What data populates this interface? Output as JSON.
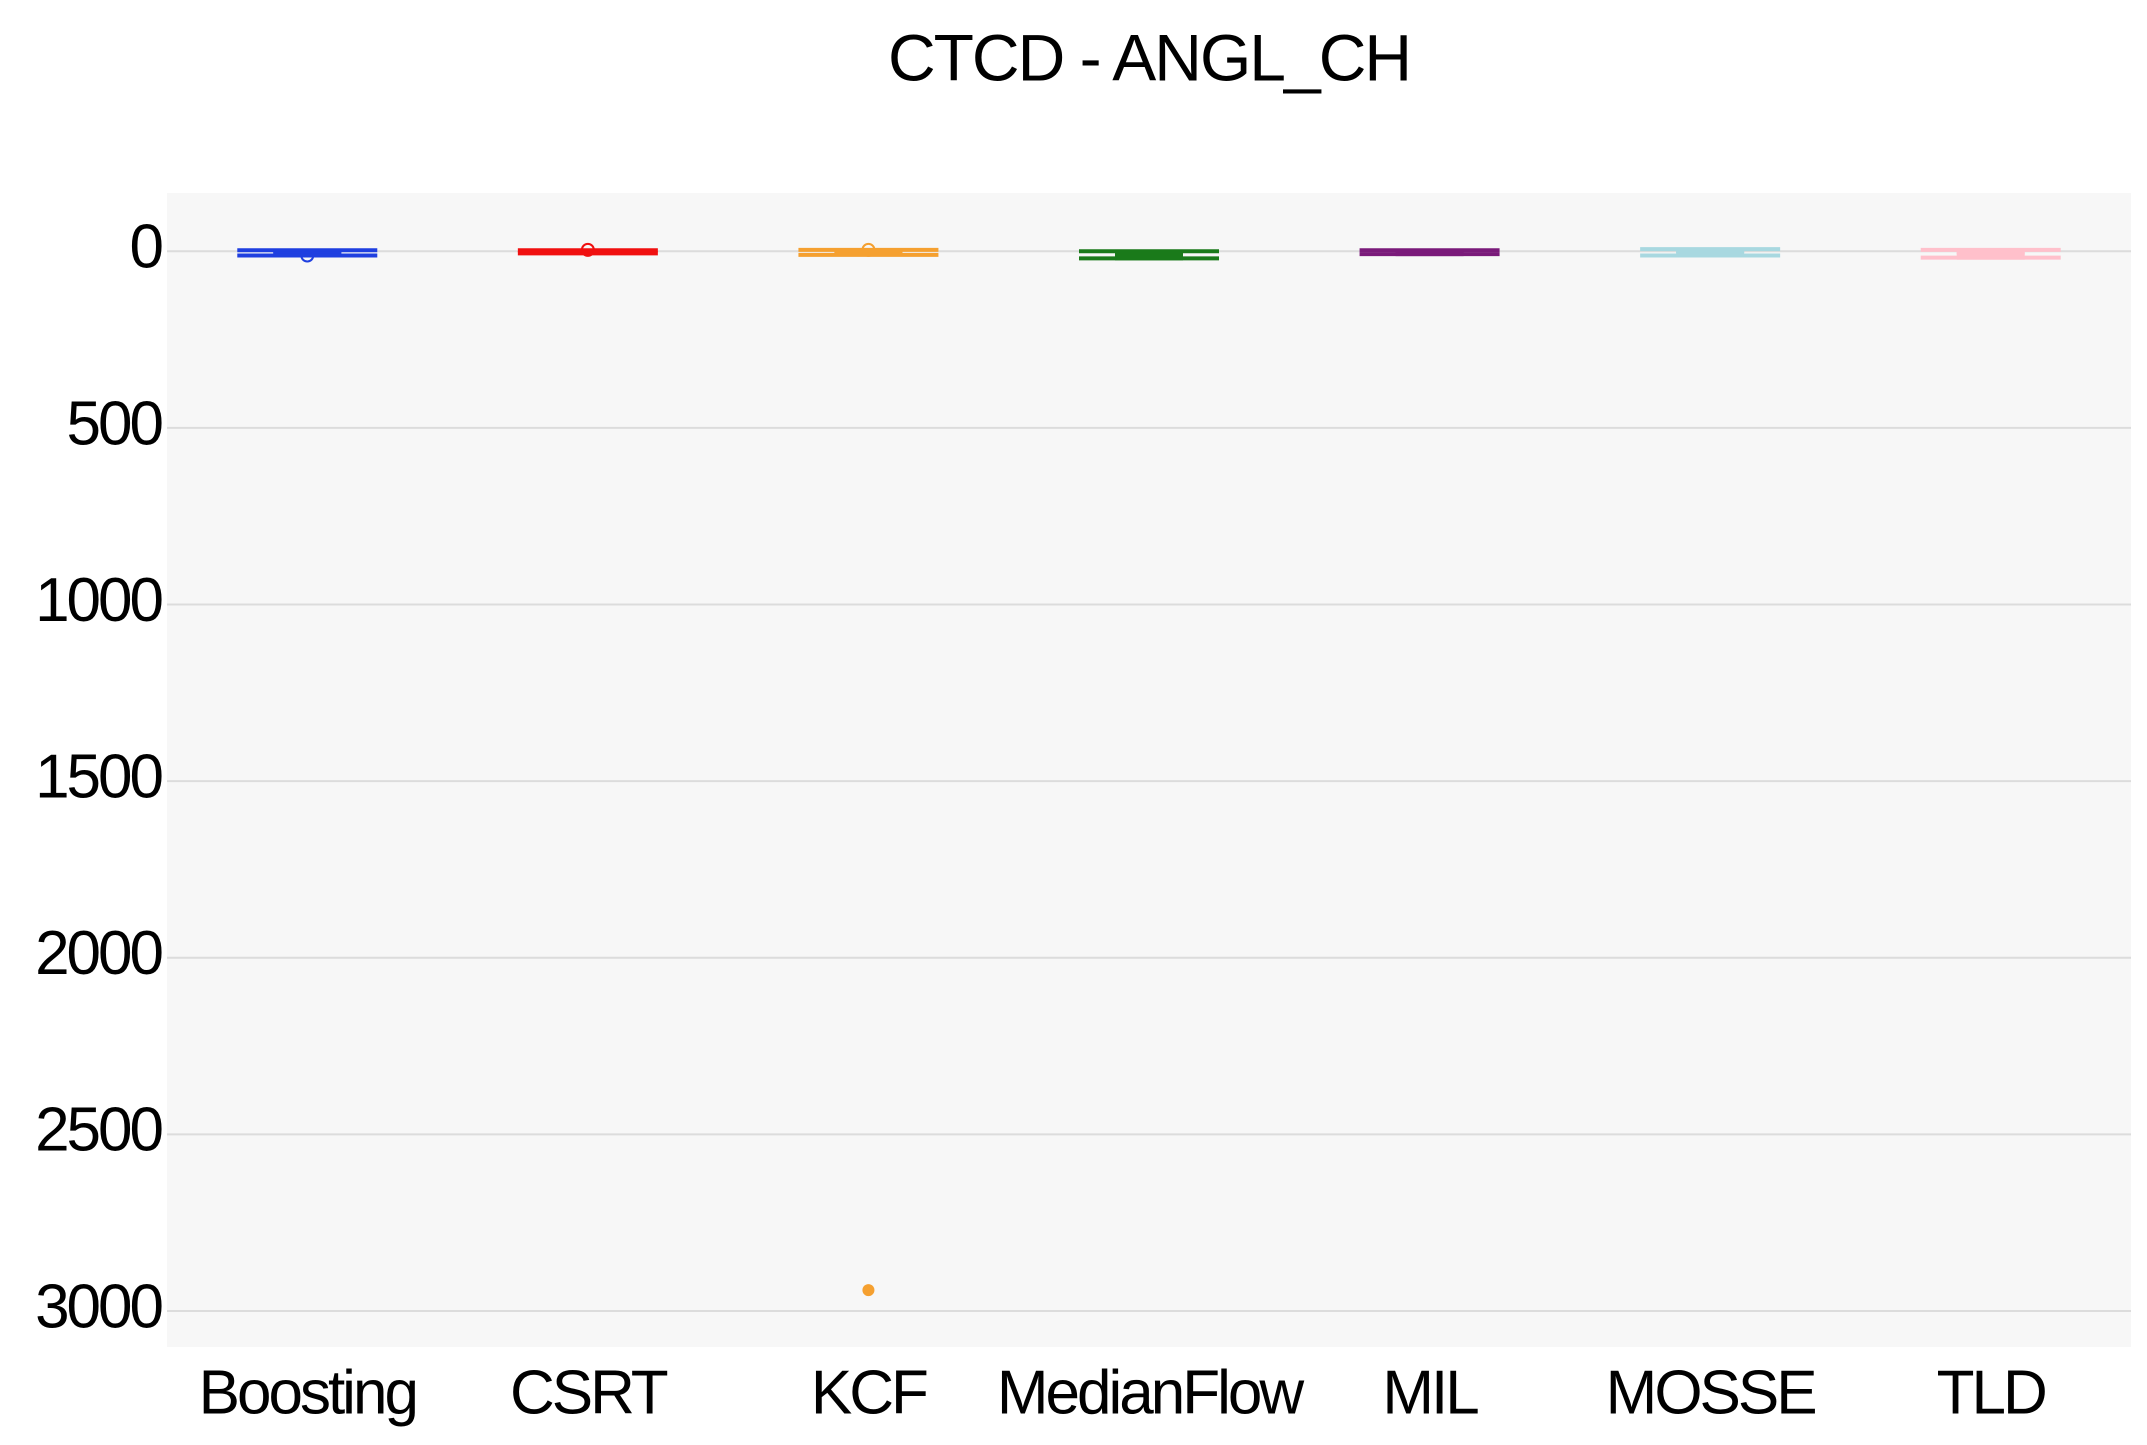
{
  "chart_data": {
    "type": "box",
    "title": "CTCD - ANGL_CH",
    "categories": [
      "Boosting",
      "CSRT",
      "KCF",
      "MedianFlow",
      "MIL",
      "MOSSE",
      "TLD"
    ],
    "series": [
      {
        "name": "Boosting",
        "color": "#1f3fe0",
        "min": -3,
        "q1": 0,
        "median": 3,
        "q3": 8,
        "max": 12,
        "mean": 12,
        "outliers": []
      },
      {
        "name": "CSRT",
        "color": "#f01010",
        "min": -3,
        "q1": -1,
        "median": 1,
        "q3": 4,
        "max": 6,
        "mean": -4,
        "outliers": []
      },
      {
        "name": "KCF",
        "color": "#f5a030",
        "min": -4,
        "q1": 0,
        "median": 2,
        "q3": 6,
        "max": 10,
        "mean": -4,
        "outliers": [
          2941
        ]
      },
      {
        "name": "MedianFlow",
        "color": "#1a7a1a",
        "min": 0,
        "q1": 2,
        "median": 8,
        "q3": 20,
        "max": 20,
        "outliers": []
      },
      {
        "name": "MIL",
        "color": "#7a1a7a",
        "min": -3,
        "q1": 0,
        "median": 3,
        "q3": 8,
        "max": 8,
        "outliers": []
      },
      {
        "name": "MOSSE",
        "color": "#a8d8e0",
        "min": -6,
        "q1": -4,
        "median": 2,
        "q3": 10,
        "max": 12,
        "outliers": []
      },
      {
        "name": "TLD",
        "color": "#ffc0cb",
        "min": -4,
        "q1": 0,
        "median": 6,
        "q3": 18,
        "max": 18,
        "outliers": []
      }
    ],
    "ylim": [
      -165,
      3102
    ],
    "y_inverted": true,
    "yticks": [
      0,
      500,
      1000,
      1500,
      2000,
      2500,
      3000
    ],
    "grid": true
  }
}
